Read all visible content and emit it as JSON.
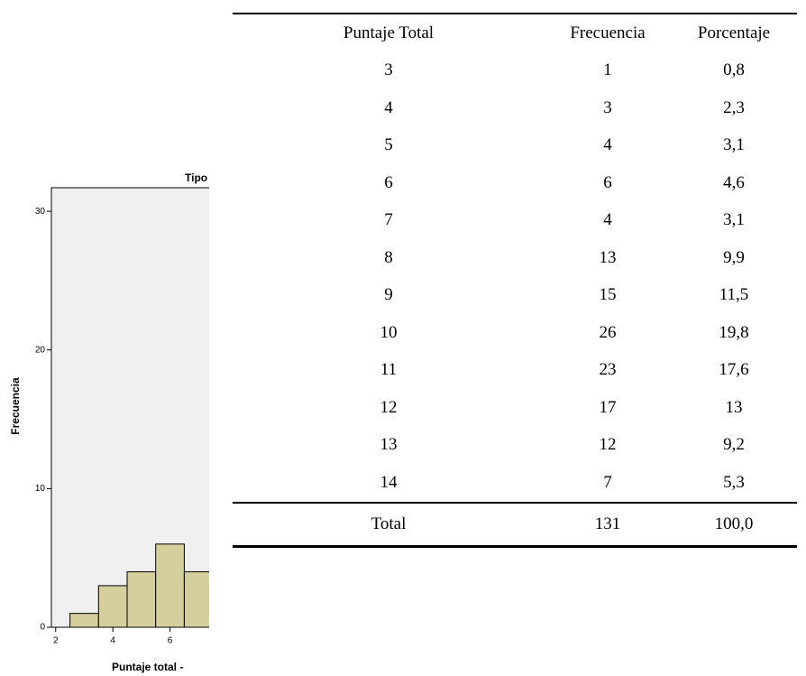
{
  "chart_data": {
    "type": "histogram",
    "title": "Tipo",
    "x_label": "Puntaje total -",
    "y_label": "Frecuencia",
    "bins": [
      2.5,
      3.5,
      4.5,
      5.5,
      6.5,
      7.5
    ],
    "values": [
      1,
      3,
      4,
      6,
      4
    ],
    "color": "#d4cf9c",
    "xlim": [
      1.85,
      15.2
    ],
    "ylim": [
      0,
      31.7
    ],
    "xticks": [
      2,
      4,
      6
    ],
    "yticks": [
      0,
      10,
      20,
      30
    ]
  },
  "table": {
    "header": [
      "Puntaje Total",
      "Frecuencia",
      "Porcentaje"
    ],
    "rows": [
      [
        "3",
        "1",
        "0,8"
      ],
      [
        "4",
        "3",
        "2,3"
      ],
      [
        "5",
        "4",
        "3,1"
      ],
      [
        "6",
        "6",
        "4,6"
      ],
      [
        "7",
        "4",
        "3,1"
      ],
      [
        "8",
        "13",
        "9,9"
      ],
      [
        "9",
        "15",
        "11,5"
      ],
      [
        "10",
        "26",
        "19,8"
      ],
      [
        "11",
        "23",
        "17,6"
      ],
      [
        "12",
        "17",
        "13"
      ],
      [
        "13",
        "12",
        "9,2"
      ],
      [
        "14",
        "7",
        "5,3"
      ]
    ],
    "total": [
      "Total",
      "131",
      "100,0"
    ]
  }
}
